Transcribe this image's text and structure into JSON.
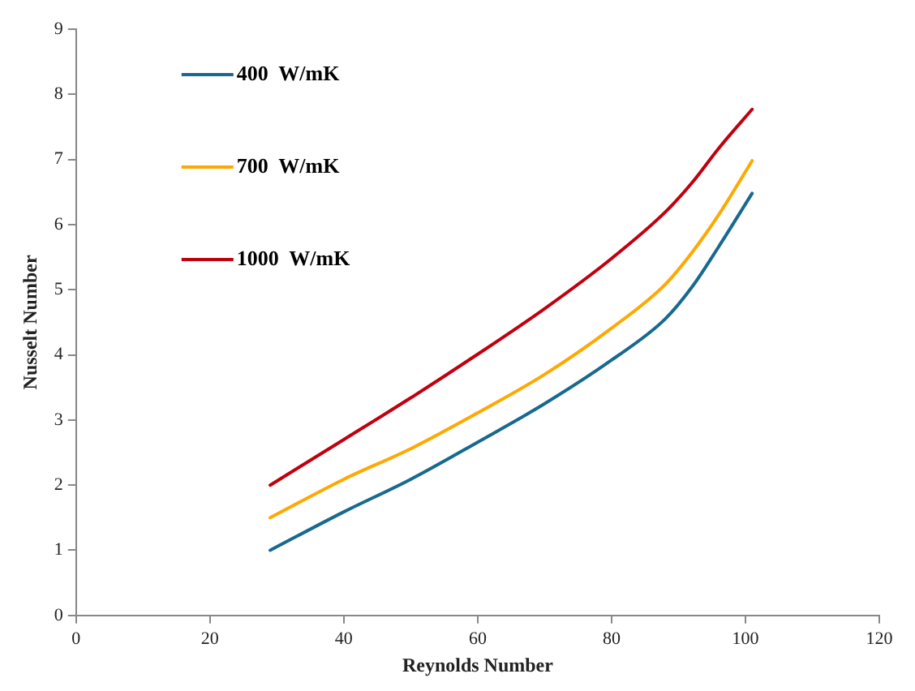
{
  "chart_data": {
    "type": "line",
    "xlabel": "Reynolds Number",
    "ylabel": "Nusselt Number",
    "x": [
      29,
      40,
      50,
      60,
      70,
      80,
      88,
      92,
      96,
      101
    ],
    "series": [
      {
        "name": "400  W/mK",
        "color": "#17698f",
        "values": [
          1.0,
          1.59,
          2.09,
          2.66,
          3.25,
          3.92,
          4.55,
          5.04,
          5.66,
          6.48
        ]
      },
      {
        "name": "700  W/mK",
        "color": "#ffa800",
        "values": [
          1.5,
          2.09,
          2.56,
          3.11,
          3.7,
          4.41,
          5.08,
          5.57,
          6.15,
          6.98
        ]
      },
      {
        "name": "1000  W/mK",
        "color": "#c0000f",
        "values": [
          2.0,
          2.7,
          3.34,
          4.01,
          4.71,
          5.48,
          6.19,
          6.64,
          7.17,
          7.77
        ]
      }
    ],
    "xlim": [
      0,
      120
    ],
    "xticks": [
      0,
      20,
      40,
      60,
      80,
      100,
      120
    ],
    "ylim": [
      0,
      9
    ],
    "yticks": [
      0,
      1,
      2,
      3,
      4,
      5,
      6,
      7,
      8,
      9
    ],
    "grid": false,
    "legend": "top left",
    "marker": "none",
    "line_style": "solid"
  }
}
